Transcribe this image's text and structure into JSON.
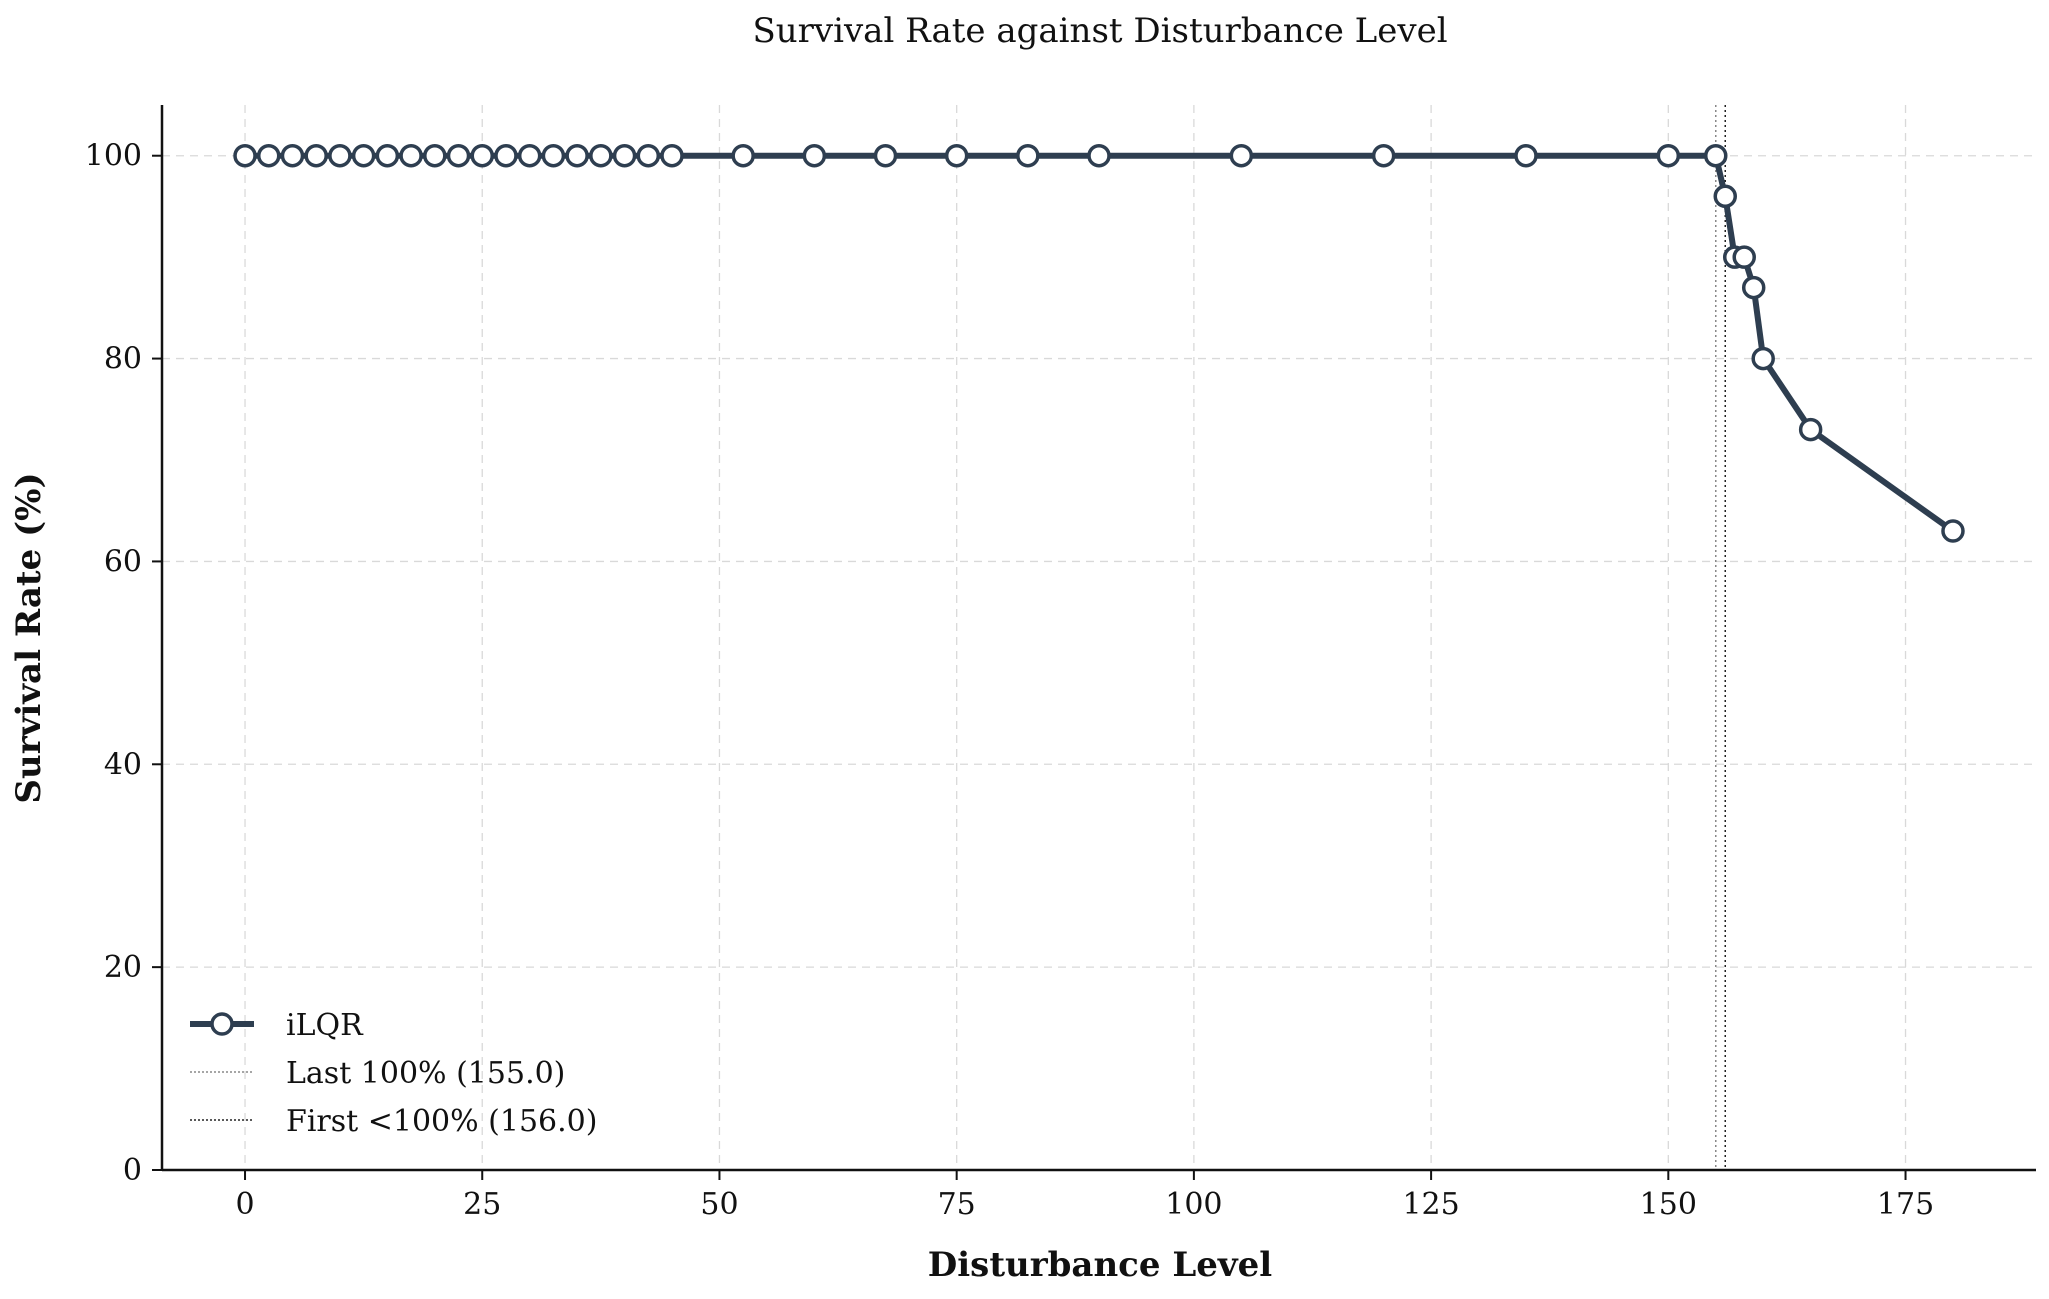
{
  "chart_data": {
    "type": "line",
    "title": "Survival Rate against Disturbance Level",
    "xlabel": "Disturbance Level",
    "ylabel": "Survival Rate (%)",
    "xlim": [
      -8.75,
      188.75
    ],
    "ylim": [
      0,
      105
    ],
    "x_ticks": [
      0,
      25,
      50,
      75,
      100,
      125,
      150,
      175
    ],
    "y_ticks": [
      0,
      20,
      40,
      60,
      80,
      100
    ],
    "grid": true,
    "legend_position": "lower-left",
    "series": [
      {
        "name": "iLQR",
        "color": "#2e3e50",
        "marker": "open-circle",
        "x": [
          0,
          2.5,
          5,
          7.5,
          10,
          12.5,
          15,
          17.5,
          20,
          22.5,
          25,
          27.5,
          30,
          32.5,
          35,
          37.5,
          40,
          42.5,
          45,
          52.5,
          60,
          67.5,
          75,
          82.5,
          90,
          105,
          120,
          135,
          150,
          155,
          156,
          157,
          158,
          159,
          160,
          165,
          180
        ],
        "y": [
          100,
          100,
          100,
          100,
          100,
          100,
          100,
          100,
          100,
          100,
          100,
          100,
          100,
          100,
          100,
          100,
          100,
          100,
          100,
          100,
          100,
          100,
          100,
          100,
          100,
          100,
          100,
          100,
          100,
          100,
          96,
          90,
          90,
          87,
          80,
          73,
          63
        ]
      }
    ],
    "reference_lines": [
      {
        "name": "Last 100% (155.0)",
        "x": 155.0,
        "color": "#888888",
        "style": "dotted"
      },
      {
        "name": "First <100% (156.0)",
        "x": 156.0,
        "color": "#222222",
        "style": "dotted"
      }
    ]
  }
}
